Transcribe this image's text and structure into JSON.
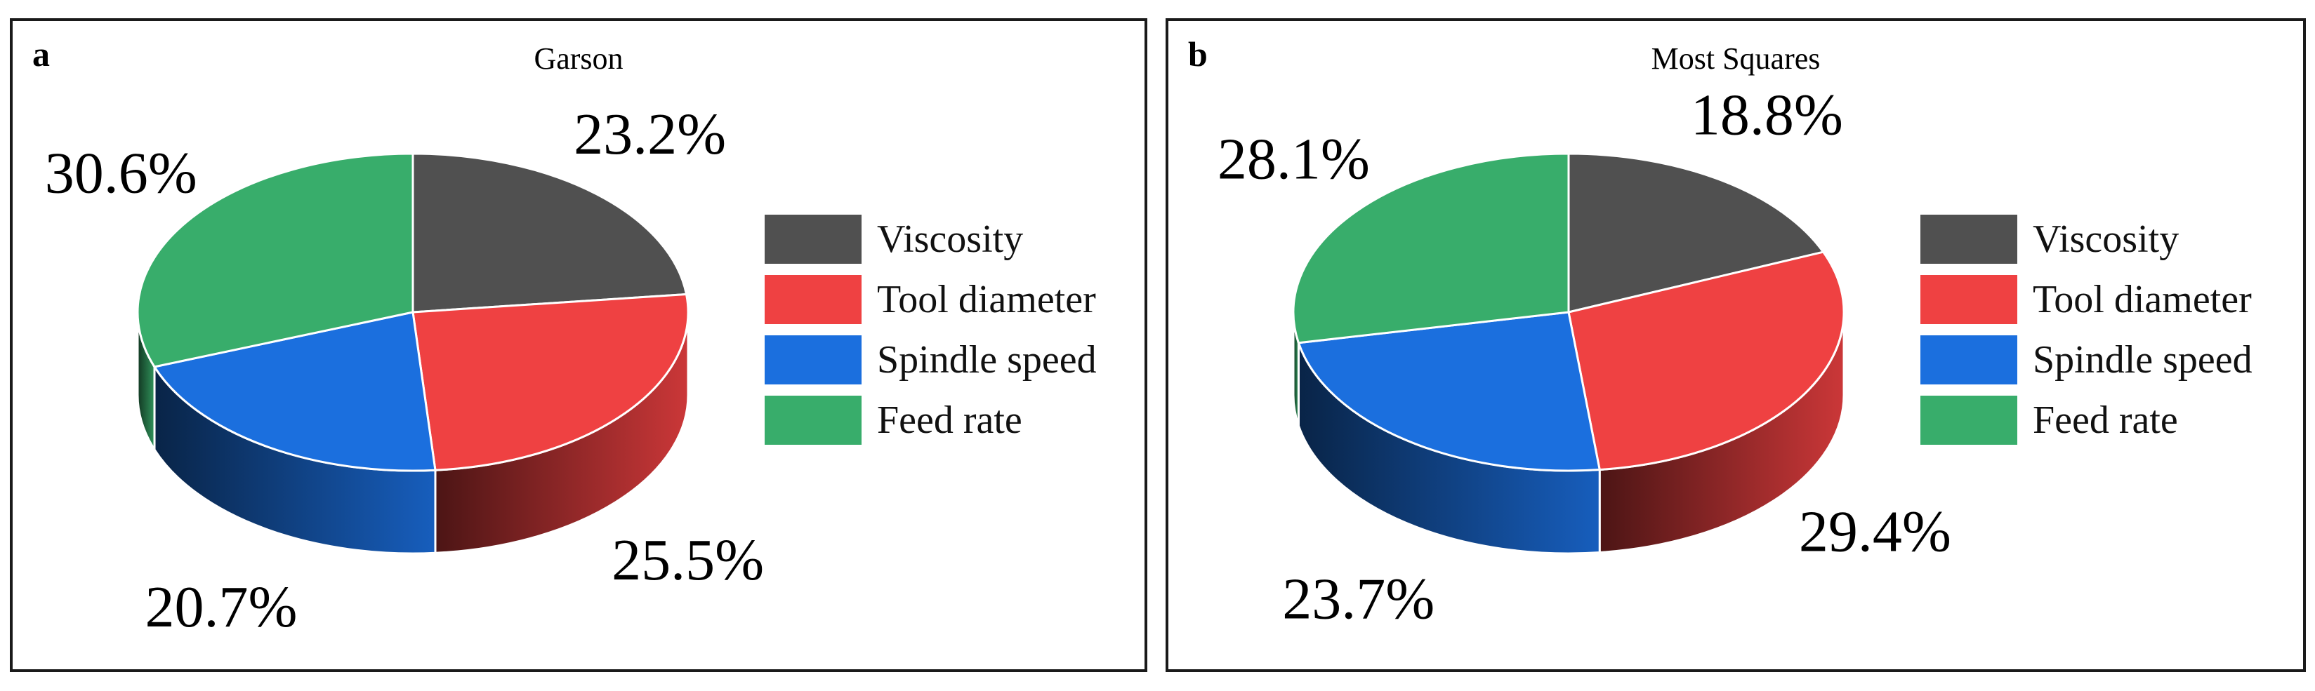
{
  "colors": {
    "Viscosity": "#505050",
    "Tool diameter": "#ef4142",
    "Spindle speed": "#1b6fde",
    "Feed rate": "#38ad6b"
  },
  "chart_data": [
    {
      "type": "pie",
      "panel_letter": "a",
      "title": "Garson",
      "categories": [
        "Viscosity",
        "Tool diameter",
        "Spindle speed",
        "Feed rate"
      ],
      "values": [
        23.2,
        25.5,
        20.7,
        30.6
      ],
      "value_labels": [
        "23.2%",
        "25.5%",
        "20.7%",
        "30.6%"
      ],
      "legend": [
        "Viscosity",
        "Tool diameter",
        "Spindle speed",
        "Feed rate"
      ],
      "legend_position": "right"
    },
    {
      "type": "pie",
      "panel_letter": "b",
      "title": "Most Squares",
      "categories": [
        "Viscosity",
        "Tool diameter",
        "Spindle speed",
        "Feed rate"
      ],
      "values": [
        18.8,
        29.4,
        23.7,
        28.1
      ],
      "value_labels": [
        "18.8%",
        "29.4%",
        "23.7%",
        "28.1%"
      ],
      "legend": [
        "Viscosity",
        "Tool diameter",
        "Spindle speed",
        "Feed rate"
      ],
      "legend_position": "right"
    }
  ]
}
